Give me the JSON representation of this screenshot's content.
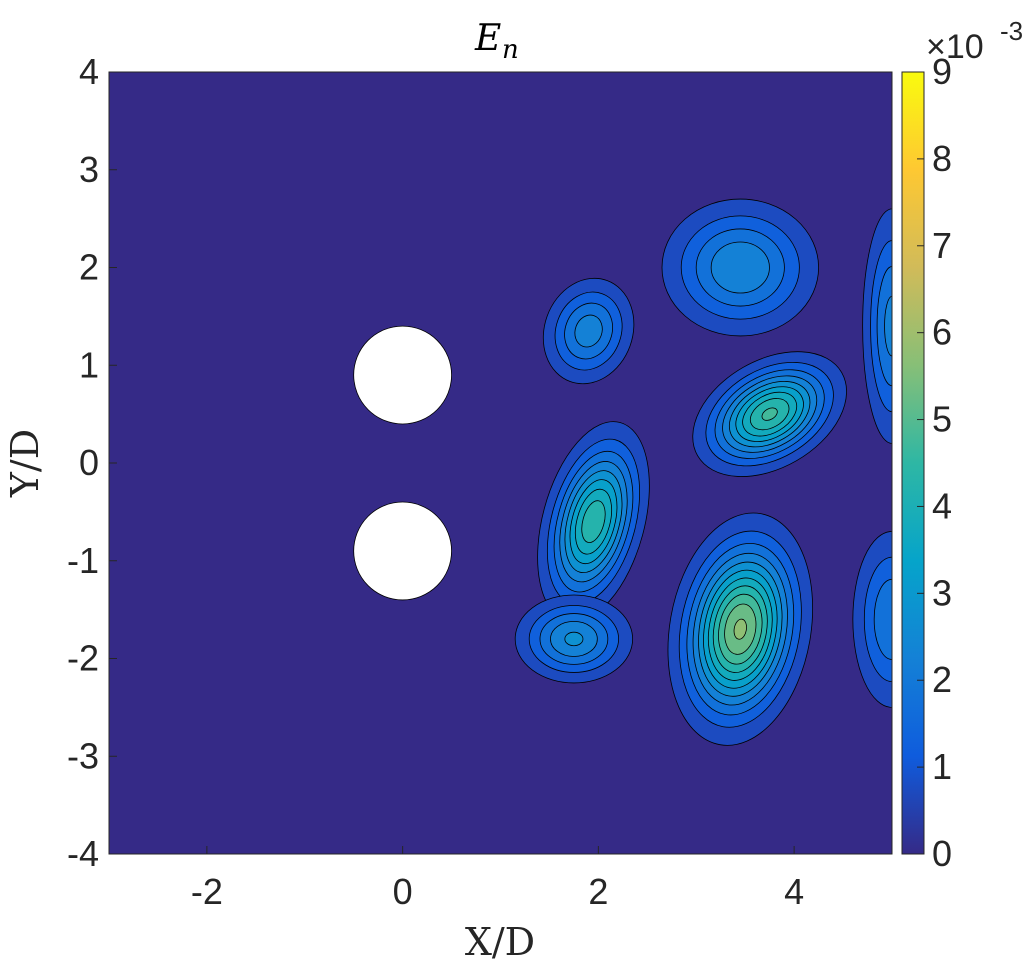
{
  "chart_data": {
    "type": "contour",
    "title": {
      "base": "E",
      "subscript": "n"
    },
    "xlabel": "X/D",
    "ylabel": "Y/D",
    "xlim": [
      -3,
      5
    ],
    "ylim": [
      -4,
      4
    ],
    "xticks": [
      "-2",
      "0",
      "2",
      "4"
    ],
    "yticks": [
      "-4",
      "-3",
      "-2",
      "-1",
      "0",
      "1",
      "2",
      "3",
      "4"
    ],
    "colorbar": {
      "range": [
        0,
        9
      ],
      "ticks": [
        "0",
        "1",
        "2",
        "3",
        "4",
        "5",
        "6",
        "7",
        "8",
        "9"
      ],
      "multiplier": {
        "base": "×10",
        "exponent": "-3"
      },
      "colormap": "parula",
      "colors": [
        "#352a87",
        "#0f5cdd",
        "#1481d6",
        "#06a4ca",
        "#2eb7a4",
        "#87bf77",
        "#d1bb59",
        "#fec832",
        "#f9fb0e"
      ]
    },
    "cylinders": [
      {
        "x": 0,
        "y": 0.9,
        "diameter": 1
      },
      {
        "x": 0,
        "y": -0.9,
        "diameter": 1
      }
    ],
    "blobs": [
      {
        "x": 3.45,
        "y": -1.7,
        "peak": 5.6,
        "sx": 0.72,
        "sy": 1.2,
        "rot": 10
      },
      {
        "x": 1.95,
        "y": -0.6,
        "peak": 4.4,
        "sx": 0.52,
        "sy": 1.05,
        "rot": 15
      },
      {
        "x": 3.75,
        "y": 0.5,
        "peak": 4.6,
        "sx": 0.85,
        "sy": 0.55,
        "rot": -30
      },
      {
        "x": 3.45,
        "y": 2.0,
        "peak": 2.5,
        "sx": 0.8,
        "sy": 0.7,
        "rot": 0
      },
      {
        "x": 1.75,
        "y": -1.8,
        "peak": 2.6,
        "sx": 0.6,
        "sy": 0.45,
        "rot": 0
      },
      {
        "x": 1.9,
        "y": 1.35,
        "peak": 2.3,
        "sx": 0.45,
        "sy": 0.55,
        "rot": 20
      },
      {
        "x": 5.0,
        "y": -1.6,
        "peak": 2.0,
        "sx": 0.4,
        "sy": 0.9,
        "rot": 0
      },
      {
        "x": 5.0,
        "y": 1.4,
        "peak": 2.2,
        "sx": 0.3,
        "sy": 1.2,
        "rot": 0
      }
    ]
  }
}
